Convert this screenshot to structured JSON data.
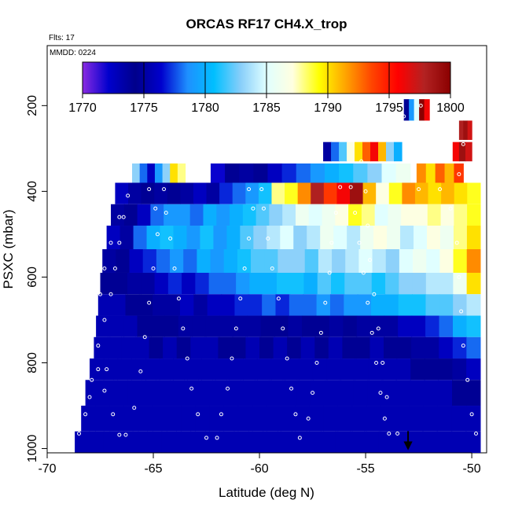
{
  "chart_data": {
    "type": "heatmap",
    "title": "ORCAS RF17 CH4.X_trop",
    "flight_note": "Flts: 17",
    "date_note": "MMDD: 0224",
    "xlabel": "Latitude (deg N)",
    "ylabel": "PSXC (mbar)",
    "xlim": [
      -70,
      -49.3
    ],
    "ylim": [
      1010,
      60
    ],
    "x_ticks": [
      -70,
      -65,
      -60,
      -55,
      -50
    ],
    "x_tick_labels": [
      "-70",
      "-65",
      "-60",
      "-55",
      "-50"
    ],
    "y_ticks": [
      200,
      400,
      600,
      800,
      1000
    ],
    "y_tick_labels": [
      "200",
      "400",
      "600",
      "800",
      "1000"
    ],
    "colorbar": {
      "min": 1770,
      "max": 1800,
      "ticks": [
        1770,
        1775,
        1780,
        1785,
        1790,
        1795,
        1800
      ],
      "tick_labels": [
        "1770",
        "1775",
        "1780",
        "1785",
        "1790",
        "1795",
        "1800"
      ],
      "colors": [
        "#8a2be2",
        "#0000cd",
        "#00008b",
        "#0000cd",
        "#1e90ff",
        "#00bfff",
        "#87cefa",
        "#e0ffff",
        "#ffffe0",
        "#ffff00",
        "#ffa500",
        "#ff4500",
        "#ff0000",
        "#b22222",
        "#8b0000"
      ]
    },
    "legend_position": "top-inside",
    "grid": false,
    "arrow_marker": {
      "latitude": -53,
      "pressure": 1000
    },
    "layers": [
      {
        "p_top": 185,
        "p_bot": 235,
        "x_start": -53.2,
        "x_end": -52.0,
        "values": [
          1774,
          1779,
          1785,
          1800,
          1796
        ]
      },
      {
        "p_top": 235,
        "p_bot": 280,
        "x_start": -50.6,
        "x_end": -50.0,
        "values": [
          1798,
          1799,
          1797
        ]
      },
      {
        "p_top": 285,
        "p_bot": 330,
        "x_start": -57.0,
        "x_end": -53.3,
        "values": [
          1775,
          1778,
          1782,
          1787,
          1790,
          1793,
          1796,
          1791,
          1783,
          1780
        ]
      },
      {
        "p_top": 285,
        "p_bot": 330,
        "x_start": -50.9,
        "x_end": -50.0,
        "values": [
          1796,
          1799,
          1797
        ]
      },
      {
        "p_top": 335,
        "p_bot": 385,
        "x_start": -66.0,
        "x_end": -63.5,
        "values": [
          1783,
          1778,
          1776,
          1779,
          1783,
          1790,
          1788
        ]
      },
      {
        "p_top": 335,
        "p_bot": 385,
        "x_start": -62.3,
        "x_end": -52.9,
        "values": [
          1772,
          1774,
          1775,
          1774,
          1776,
          1777,
          1778,
          1779,
          1780,
          1781,
          1782,
          1783,
          1785,
          1786
        ]
      },
      {
        "p_top": 335,
        "p_bot": 385,
        "x_start": -52.6,
        "x_end": -50.4,
        "values": [
          1792,
          1790,
          1793,
          1791,
          1794
        ]
      },
      {
        "p_top": 380,
        "p_bot": 430,
        "x_start": -66.8,
        "x_end": -49.6,
        "values": [
          1776,
          1775,
          1774,
          1775,
          1774,
          1775,
          1776,
          1775,
          1777,
          1778,
          1779,
          1781,
          1788,
          1789,
          1792,
          1798,
          1794,
          1796,
          1799,
          1791,
          1787,
          1789,
          1792,
          1791,
          1790,
          1791,
          1790,
          1789
        ]
      },
      {
        "p_top": 430,
        "p_bot": 480,
        "x_start": -67.0,
        "x_end": -49.6,
        "values": [
          1775,
          1774,
          1776,
          1778,
          1779,
          1779,
          1778,
          1780,
          1779,
          1780,
          1781,
          1782,
          1783,
          1784,
          1786,
          1785,
          1786,
          1787,
          1789,
          1788,
          1785,
          1786,
          1787,
          1787,
          1788,
          1787,
          1788,
          1789
        ]
      },
      {
        "p_top": 480,
        "p_bot": 535,
        "x_start": -67.2,
        "x_end": -49.6,
        "values": [
          1776,
          1775,
          1778,
          1780,
          1781,
          1780,
          1779,
          1781,
          1779,
          1780,
          1782,
          1783,
          1784,
          1785,
          1783,
          1784,
          1786,
          1785,
          1784,
          1786,
          1787,
          1786,
          1784,
          1785,
          1787,
          1786,
          1788,
          1790
        ]
      },
      {
        "p_top": 535,
        "p_bot": 590,
        "x_start": -67.4,
        "x_end": -49.6,
        "values": [
          1775,
          1774,
          1776,
          1777,
          1778,
          1779,
          1778,
          1780,
          1779,
          1780,
          1781,
          1782,
          1782,
          1783,
          1783,
          1782,
          1784,
          1783,
          1784,
          1785,
          1784,
          1783,
          1785,
          1786,
          1785,
          1787,
          1789,
          1792
        ]
      },
      {
        "p_top": 590,
        "p_bot": 640,
        "x_start": -67.5,
        "x_end": -49.6,
        "values": [
          1774,
          1774,
          1775,
          1775,
          1776,
          1777,
          1776,
          1777,
          1778,
          1778,
          1779,
          1780,
          1780,
          1781,
          1781,
          1780,
          1782,
          1781,
          1782,
          1782,
          1781,
          1782,
          1783,
          1783,
          1784,
          1784,
          1786,
          1790
        ]
      },
      {
        "p_top": 640,
        "p_bot": 690,
        "x_start": -67.6,
        "x_end": -49.6,
        "values": [
          1773,
          1773,
          1774,
          1774,
          1775,
          1775,
          1776,
          1775,
          1776,
          1776,
          1777,
          1777,
          1778,
          1777,
          1778,
          1778,
          1779,
          1778,
          1779,
          1779,
          1780,
          1780,
          1781,
          1781,
          1782,
          1782,
          1783,
          1784
        ]
      },
      {
        "p_top": 690,
        "p_bot": 740,
        "x_start": -67.7,
        "x_end": -49.6,
        "values": [
          1773,
          1773,
          1773,
          1774,
          1774,
          1774,
          1775,
          1775,
          1775,
          1775,
          1775,
          1775,
          1774,
          1774,
          1775,
          1774,
          1774,
          1775,
          1774,
          1775,
          1775,
          1775,
          1776,
          1776,
          1777,
          1778,
          1780,
          1781
        ]
      },
      {
        "p_top": 740,
        "p_bot": 790,
        "x_start": -67.8,
        "x_end": -49.6,
        "values": [
          1773,
          1773,
          1773,
          1773,
          1774,
          1773,
          1774,
          1773,
          1773,
          1774,
          1774,
          1773,
          1774,
          1773,
          1774,
          1773,
          1774,
          1773,
          1774,
          1774,
          1773,
          1774,
          1774,
          1775,
          1775,
          1776,
          1777,
          1778
        ]
      },
      {
        "p_top": 790,
        "p_bot": 840,
        "x_start": -68.0,
        "x_end": -49.6,
        "values": [
          1773,
          1773,
          1773,
          1773,
          1773,
          1773,
          1773,
          1773,
          1773,
          1773,
          1773,
          1773,
          1773,
          1773,
          1773,
          1773,
          1773,
          1773,
          1773,
          1773,
          1773,
          1773,
          1773,
          1774,
          1774,
          1774,
          1775,
          1776
        ]
      },
      {
        "p_top": 840,
        "p_bot": 900,
        "x_start": -68.2,
        "x_end": -49.6,
        "values": [
          1773,
          1773,
          1773,
          1773,
          1773,
          1773,
          1773,
          1773,
          1773,
          1773,
          1773,
          1773,
          1773,
          1773,
          1773,
          1773,
          1773,
          1773,
          1773,
          1773,
          1773,
          1773,
          1773,
          1773,
          1773,
          1773,
          1774,
          1774
        ]
      },
      {
        "p_top": 900,
        "p_bot": 960,
        "x_start": -68.4,
        "x_end": -49.6,
        "values": [
          1773,
          1773,
          1773,
          1773,
          1773,
          1773,
          1773,
          1773,
          1773,
          1773,
          1773,
          1773,
          1773,
          1773,
          1773,
          1773,
          1773,
          1773,
          1773,
          1773,
          1773,
          1773,
          1773,
          1773,
          1773,
          1773,
          1773,
          1773
        ]
      },
      {
        "p_top": 960,
        "p_bot": 1010,
        "x_start": -68.7,
        "x_end": -49.6,
        "values": [
          1773,
          1773,
          1773,
          1773,
          1773,
          1773,
          1773,
          1773,
          1773,
          1773,
          1773,
          1773,
          1773,
          1773,
          1773,
          1773,
          1773,
          1773,
          1773,
          1773,
          1773,
          1773,
          1773,
          1773,
          1773,
          1773,
          1773,
          1773
        ]
      }
    ],
    "flight_track": [
      {
        "lat": -68.5,
        "p": 965
      },
      {
        "lat": -68.2,
        "p": 920
      },
      {
        "lat": -68.0,
        "p": 880
      },
      {
        "lat": -67.9,
        "p": 840
      },
      {
        "lat": -67.6,
        "p": 815
      },
      {
        "lat": -67.2,
        "p": 815
      },
      {
        "lat": -67.6,
        "p": 760
      },
      {
        "lat": -67.3,
        "p": 700
      },
      {
        "lat": -67.0,
        "p": 640
      },
      {
        "lat": -66.8,
        "p": 580
      },
      {
        "lat": -66.6,
        "p": 520
      },
      {
        "lat": -66.4,
        "p": 460
      },
      {
        "lat": -66.2,
        "p": 410
      },
      {
        "lat": -66.6,
        "p": 460
      },
      {
        "lat": -67.0,
        "p": 520
      },
      {
        "lat": -67.3,
        "p": 580
      },
      {
        "lat": -67.5,
        "p": 640
      },
      {
        "lat": -67.8,
        "p": 700
      },
      {
        "lat": -68.0,
        "p": 760
      },
      {
        "lat": -67.3,
        "p": 865
      },
      {
        "lat": -66.9,
        "p": 920
      },
      {
        "lat": -66.6,
        "p": 968
      },
      {
        "lat": -66.3,
        "p": 968
      },
      {
        "lat": -65.9,
        "p": 905
      },
      {
        "lat": -65.6,
        "p": 820
      },
      {
        "lat": -65.4,
        "p": 740
      },
      {
        "lat": -65.2,
        "p": 660
      },
      {
        "lat": -65.0,
        "p": 580
      },
      {
        "lat": -64.8,
        "p": 500
      },
      {
        "lat": -64.9,
        "p": 440
      },
      {
        "lat": -65.2,
        "p": 395
      },
      {
        "lat": -64.5,
        "p": 395
      },
      {
        "lat": -64.4,
        "p": 450
      },
      {
        "lat": -64.2,
        "p": 510
      },
      {
        "lat": -64.0,
        "p": 580
      },
      {
        "lat": -63.8,
        "p": 650
      },
      {
        "lat": -63.6,
        "p": 720
      },
      {
        "lat": -63.4,
        "p": 790
      },
      {
        "lat": -63.2,
        "p": 860
      },
      {
        "lat": -62.9,
        "p": 920
      },
      {
        "lat": -62.5,
        "p": 975
      },
      {
        "lat": -62.0,
        "p": 975
      },
      {
        "lat": -61.8,
        "p": 920
      },
      {
        "lat": -61.5,
        "p": 860
      },
      {
        "lat": -61.3,
        "p": 790
      },
      {
        "lat": -61.1,
        "p": 720
      },
      {
        "lat": -60.9,
        "p": 650
      },
      {
        "lat": -60.7,
        "p": 580
      },
      {
        "lat": -60.5,
        "p": 510
      },
      {
        "lat": -60.3,
        "p": 440
      },
      {
        "lat": -60.5,
        "p": 395
      },
      {
        "lat": -59.9,
        "p": 395
      },
      {
        "lat": -59.8,
        "p": 440
      },
      {
        "lat": -59.6,
        "p": 510
      },
      {
        "lat": -59.4,
        "p": 580
      },
      {
        "lat": -59.1,
        "p": 650
      },
      {
        "lat": -58.9,
        "p": 720
      },
      {
        "lat": -58.7,
        "p": 790
      },
      {
        "lat": -58.5,
        "p": 860
      },
      {
        "lat": -58.3,
        "p": 920
      },
      {
        "lat": -58.1,
        "p": 975
      },
      {
        "lat": -57.7,
        "p": 930
      },
      {
        "lat": -57.5,
        "p": 870
      },
      {
        "lat": -57.3,
        "p": 800
      },
      {
        "lat": -57.1,
        "p": 730
      },
      {
        "lat": -56.9,
        "p": 660
      },
      {
        "lat": -56.7,
        "p": 590
      },
      {
        "lat": -56.6,
        "p": 520
      },
      {
        "lat": -56.4,
        "p": 450
      },
      {
        "lat": -56.2,
        "p": 390
      },
      {
        "lat": -55.7,
        "p": 390
      },
      {
        "lat": -55.5,
        "p": 450
      },
      {
        "lat": -55.3,
        "p": 520
      },
      {
        "lat": -55.1,
        "p": 590
      },
      {
        "lat": -54.9,
        "p": 660
      },
      {
        "lat": -54.7,
        "p": 730
      },
      {
        "lat": -54.5,
        "p": 800
      },
      {
        "lat": -54.3,
        "p": 870
      },
      {
        "lat": -54.1,
        "p": 930
      },
      {
        "lat": -53.9,
        "p": 965
      },
      {
        "lat": -53.5,
        "p": 965
      },
      {
        "lat": -54.0,
        "p": 880
      },
      {
        "lat": -54.2,
        "p": 800
      },
      {
        "lat": -54.4,
        "p": 720
      },
      {
        "lat": -54.6,
        "p": 640
      },
      {
        "lat": -54.8,
        "p": 560
      },
      {
        "lat": -54.9,
        "p": 480
      },
      {
        "lat": -55.0,
        "p": 400
      },
      {
        "lat": -55.2,
        "p": 330
      },
      {
        "lat": -53.2,
        "p": 225
      },
      {
        "lat": -52.4,
        "p": 200
      },
      {
        "lat": -51.6,
        "p": 200
      },
      {
        "lat": -50.8,
        "p": 230
      },
      {
        "lat": -50.4,
        "p": 290
      },
      {
        "lat": -50.6,
        "p": 360
      },
      {
        "lat": -51.5,
        "p": 395
      },
      {
        "lat": -52.5,
        "p": 395
      },
      {
        "lat": -51.0,
        "p": 440
      },
      {
        "lat": -50.7,
        "p": 520
      },
      {
        "lat": -50.6,
        "p": 600
      },
      {
        "lat": -50.5,
        "p": 680
      },
      {
        "lat": -50.4,
        "p": 760
      },
      {
        "lat": -50.2,
        "p": 840
      },
      {
        "lat": -50.0,
        "p": 920
      },
      {
        "lat": -49.8,
        "p": 965
      }
    ]
  }
}
